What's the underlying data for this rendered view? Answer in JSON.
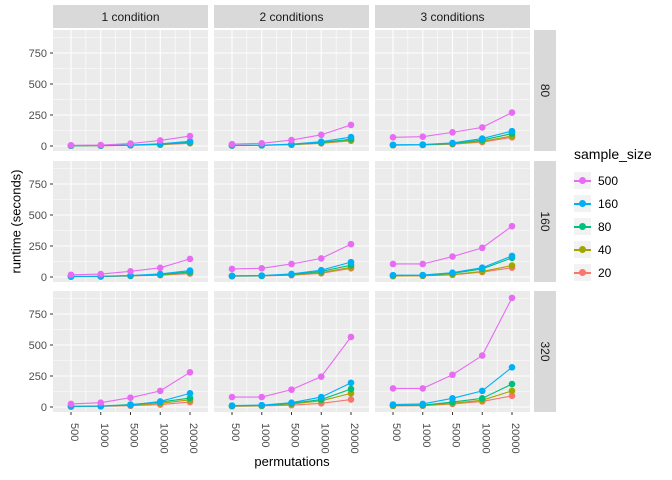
{
  "colors": {
    "background": "#FFFFFF",
    "panel_bg": "#EBEBEB",
    "strip_bg": "#D9D9D9",
    "grid": "#FFFFFF",
    "tick_mark": "#333333",
    "axis_text": "#4D4D4D",
    "strip_text": "#1A1A1A"
  },
  "chart_data": {
    "type": "line",
    "title": "",
    "xlabel": "permutations",
    "ylabel": "runtime (seconds)",
    "x_categories": [
      "500",
      "1000",
      "5000",
      "10000",
      "20000"
    ],
    "y_ticks": [
      0,
      250,
      500,
      750
    ],
    "ylim": [
      0,
      935
    ],
    "grid": "on",
    "facet_col_labels": [
      "1 condition",
      "2 conditions",
      "3 conditions"
    ],
    "facet_row_labels": [
      "80",
      "160",
      "320"
    ],
    "legend": {
      "title": "sample_size",
      "position": "right",
      "entries": [
        {
          "label": "500",
          "color": "#E76BF3"
        },
        {
          "label": "160",
          "color": "#00B0F6"
        },
        {
          "label": "80",
          "color": "#00BF7D"
        },
        {
          "label": "40",
          "color": "#A3A500"
        },
        {
          "label": "20",
          "color": "#F8766D"
        }
      ]
    },
    "panels": [
      {
        "facet_row": "80",
        "facet_col": "1 condition",
        "series": [
          {
            "name": "20",
            "color": "#F8766D",
            "values": [
              2,
              2,
              5,
              10,
              22
            ]
          },
          {
            "name": "40",
            "color": "#A3A500",
            "values": [
              2,
              3,
              6,
              12,
              26
            ]
          },
          {
            "name": "80",
            "color": "#00BF7D",
            "values": [
              2,
              3,
              7,
              14,
              30
            ]
          },
          {
            "name": "160",
            "color": "#00B0F6",
            "values": [
              3,
              4,
              8,
              18,
              38
            ]
          },
          {
            "name": "500",
            "color": "#E76BF3",
            "values": [
              6,
              8,
              20,
              45,
              80
            ]
          }
        ]
      },
      {
        "facet_row": "80",
        "facet_col": "2 conditions",
        "series": [
          {
            "name": "20",
            "color": "#F8766D",
            "values": [
              3,
              5,
              10,
              22,
              42
            ]
          },
          {
            "name": "40",
            "color": "#A3A500",
            "values": [
              4,
              5,
              11,
              24,
              48
            ]
          },
          {
            "name": "80",
            "color": "#00BF7D",
            "values": [
              4,
              6,
              12,
              28,
              55
            ]
          },
          {
            "name": "160",
            "color": "#00B0F6",
            "values": [
              5,
              7,
              15,
              35,
              72
            ]
          },
          {
            "name": "500",
            "color": "#E76BF3",
            "values": [
              15,
              22,
              48,
              90,
              170
            ]
          }
        ]
      },
      {
        "facet_row": "80",
        "facet_col": "3 conditions",
        "series": [
          {
            "name": "20",
            "color": "#F8766D",
            "values": [
              6,
              8,
              15,
              32,
              70
            ]
          },
          {
            "name": "40",
            "color": "#A3A500",
            "values": [
              7,
              9,
              18,
              38,
              80
            ]
          },
          {
            "name": "80",
            "color": "#00BF7D",
            "values": [
              8,
              10,
              20,
              48,
              100
            ]
          },
          {
            "name": "160",
            "color": "#00B0F6",
            "values": [
              10,
              12,
              25,
              60,
              120
            ]
          },
          {
            "name": "500",
            "color": "#E76BF3",
            "values": [
              70,
              75,
              110,
              150,
              270
            ]
          }
        ]
      },
      {
        "facet_row": "160",
        "facet_col": "1 condition",
        "series": [
          {
            "name": "20",
            "color": "#F8766D",
            "values": [
              3,
              4,
              8,
              15,
              28
            ]
          },
          {
            "name": "40",
            "color": "#A3A500",
            "values": [
              3,
              4,
              9,
              17,
              34
            ]
          },
          {
            "name": "80",
            "color": "#00BF7D",
            "values": [
              4,
              5,
              10,
              20,
              42
            ]
          },
          {
            "name": "160",
            "color": "#00B0F6",
            "values": [
              5,
              6,
              12,
              25,
              52
            ]
          },
          {
            "name": "500",
            "color": "#E76BF3",
            "values": [
              18,
              24,
              46,
              74,
              146
            ]
          }
        ]
      },
      {
        "facet_row": "160",
        "facet_col": "2 conditions",
        "series": [
          {
            "name": "20",
            "color": "#F8766D",
            "values": [
              6,
              8,
              15,
              30,
              70
            ]
          },
          {
            "name": "40",
            "color": "#A3A500",
            "values": [
              7,
              9,
              18,
              35,
              78
            ]
          },
          {
            "name": "80",
            "color": "#00BF7D",
            "values": [
              8,
              10,
              20,
              45,
              95
            ]
          },
          {
            "name": "160",
            "color": "#00B0F6",
            "values": [
              10,
              12,
              25,
              55,
              120
            ]
          },
          {
            "name": "500",
            "color": "#E76BF3",
            "values": [
              65,
              70,
              105,
              150,
              265
            ]
          }
        ]
      },
      {
        "facet_row": "160",
        "facet_col": "3 conditions",
        "series": [
          {
            "name": "20",
            "color": "#F8766D",
            "values": [
              7,
              9,
              18,
              40,
              75
            ]
          },
          {
            "name": "40",
            "color": "#A3A500",
            "values": [
              8,
              10,
              20,
              45,
              92
            ]
          },
          {
            "name": "80",
            "color": "#00BF7D",
            "values": [
              12,
              14,
              30,
              65,
              155
            ]
          },
          {
            "name": "160",
            "color": "#00B0F6",
            "values": [
              15,
              16,
              35,
              75,
              170
            ]
          },
          {
            "name": "500",
            "color": "#E76BF3",
            "values": [
              105,
              105,
              165,
              235,
              410
            ]
          }
        ]
      },
      {
        "facet_row": "320",
        "facet_col": "1 condition",
        "series": [
          {
            "name": "20",
            "color": "#F8766D",
            "values": [
              3,
              5,
              10,
              20,
              40
            ]
          },
          {
            "name": "40",
            "color": "#A3A500",
            "values": [
              4,
              6,
              14,
              30,
              58
            ]
          },
          {
            "name": "80",
            "color": "#00BF7D",
            "values": [
              5,
              8,
              20,
              40,
              72
            ]
          },
          {
            "name": "160",
            "color": "#00B0F6",
            "values": [
              6,
              6,
              16,
              45,
              110
            ]
          },
          {
            "name": "500",
            "color": "#E76BF3",
            "values": [
              25,
              35,
              75,
              130,
              280
            ]
          }
        ]
      },
      {
        "facet_row": "320",
        "facet_col": "2 conditions",
        "series": [
          {
            "name": "20",
            "color": "#F8766D",
            "values": [
              5,
              8,
              15,
              30,
              60
            ]
          },
          {
            "name": "40",
            "color": "#A3A500",
            "values": [
              8,
              10,
              25,
              50,
              110
            ]
          },
          {
            "name": "80",
            "color": "#00BF7D",
            "values": [
              9,
              12,
              30,
              60,
              145
            ]
          },
          {
            "name": "160",
            "color": "#00B0F6",
            "values": [
              12,
              15,
              35,
              80,
              195
            ]
          },
          {
            "name": "500",
            "color": "#E76BF3",
            "values": [
              80,
              80,
              140,
              245,
              565
            ]
          }
        ]
      },
      {
        "facet_row": "320",
        "facet_col": "3 conditions",
        "series": [
          {
            "name": "20",
            "color": "#F8766D",
            "values": [
              8,
              10,
              25,
              45,
              90
            ]
          },
          {
            "name": "40",
            "color": "#A3A500",
            "values": [
              10,
              12,
              30,
              55,
              130
            ]
          },
          {
            "name": "80",
            "color": "#00BF7D",
            "values": [
              15,
              15,
              40,
              70,
              185
            ]
          },
          {
            "name": "160",
            "color": "#00B0F6",
            "values": [
              20,
              25,
              70,
              130,
              320
            ]
          },
          {
            "name": "500",
            "color": "#E76BF3",
            "values": [
              150,
              150,
              260,
              415,
              880
            ]
          }
        ]
      }
    ]
  }
}
